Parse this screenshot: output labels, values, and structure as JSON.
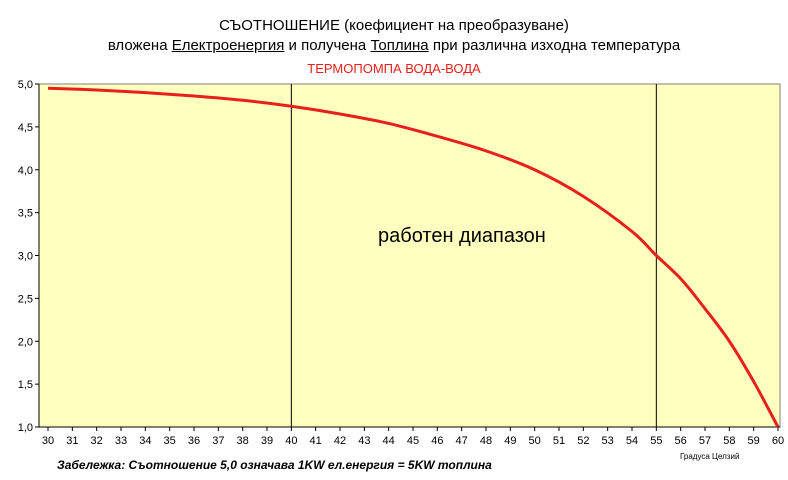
{
  "chart_data": {
    "type": "line",
    "title_line1": "СЪОТНОШЕНИЕ (коефициент на преобразуване)",
    "title_line2_parts": [
      "вложена ",
      "Електроенергия",
      " и получена ",
      "Топлина",
      " при различна изходна температура"
    ],
    "subtitle": "ТЕРМОПОМПА ВОДА-ВОДА",
    "annotation": "работен диапазон",
    "note": "Забележка: Съотношение 5,0 означава 1KW ел.енергия = 5KW топлина",
    "xlabel": "Градуса Целзий",
    "xlim": [
      30,
      60
    ],
    "ylim": [
      1.0,
      5.0
    ],
    "x_ticks": [
      30,
      31,
      32,
      33,
      34,
      35,
      36,
      37,
      38,
      39,
      40,
      41,
      42,
      43,
      44,
      45,
      46,
      47,
      48,
      49,
      50,
      51,
      52,
      53,
      54,
      55,
      56,
      57,
      58,
      59,
      60
    ],
    "y_ticks": [
      "1,0",
      "1,5",
      "2,0",
      "2,5",
      "3,0",
      "3,5",
      "4,0",
      "4,5",
      "5,0"
    ],
    "range_lines": [
      40,
      55
    ],
    "grid": false,
    "plot_bg": "#ffffc0",
    "line_color": "#e8201b",
    "series": [
      {
        "x": [
          30,
          32,
          34,
          36,
          38,
          40,
          42,
          44,
          46,
          48,
          50,
          52,
          54,
          55,
          56,
          57,
          58,
          59,
          60
        ],
        "values": [
          4.95,
          4.93,
          4.9,
          4.86,
          4.81,
          4.74,
          4.65,
          4.54,
          4.39,
          4.22,
          4.0,
          3.69,
          3.28,
          3.0,
          2.73,
          2.38,
          2.0,
          1.53,
          1.0
        ]
      }
    ]
  }
}
